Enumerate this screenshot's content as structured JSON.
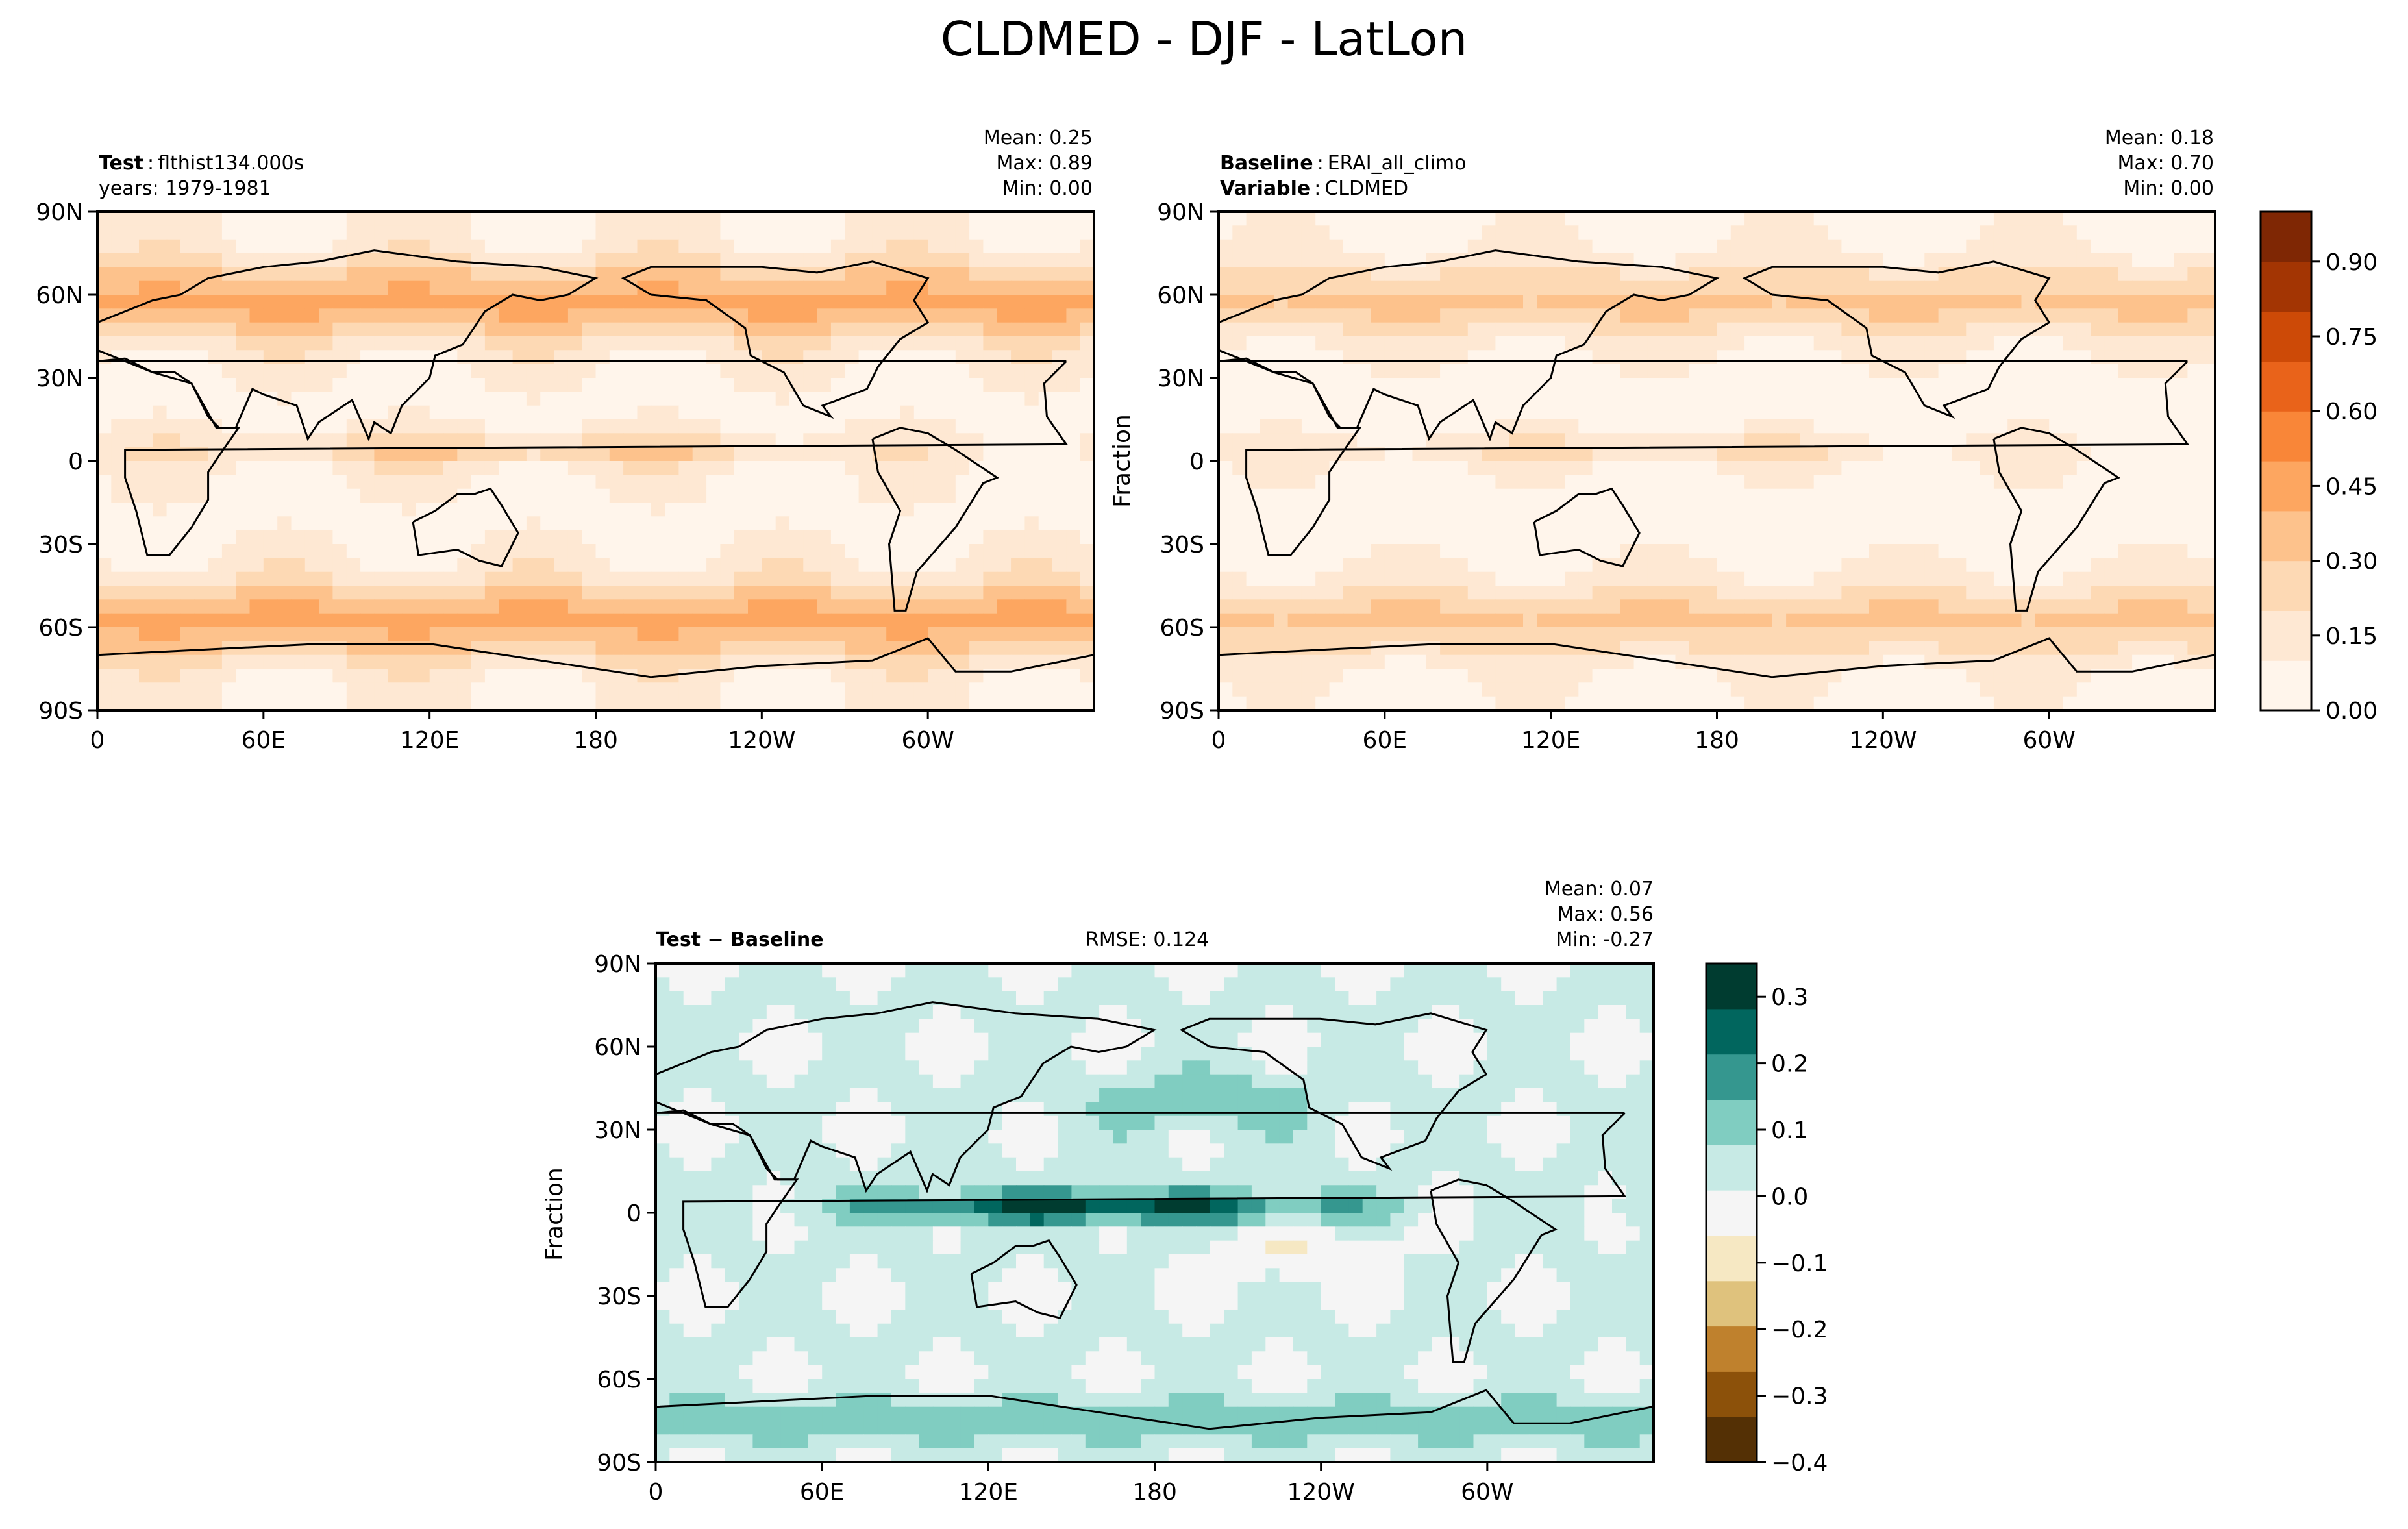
{
  "figure": {
    "title": "CLDMED - DJF - LatLon"
  },
  "colors": {
    "orange_scale": [
      "#fff5eb",
      "#fee8d3",
      "#fdd9b4",
      "#fdc28c",
      "#fda660",
      "#f98638",
      "#e9631a",
      "#cd4a07",
      "#a33503",
      "#7f2704"
    ],
    "diff_scale": [
      "#543005",
      "#8c510a",
      "#bf812d",
      "#dfc27d",
      "#f6e8c3",
      "#f5f5f5",
      "#c7eae5",
      "#80cdc1",
      "#35978f",
      "#01665e",
      "#003c30"
    ],
    "coast": "#000000"
  },
  "panels": {
    "test": {
      "label_bold": "Test",
      "label_value": "flthist134.000s",
      "sub": "years: 1979-1981",
      "mean": "Mean:  0.25",
      "max": "Max:  0.89",
      "min": "Min:  0.00"
    },
    "baseline": {
      "label_bold": "Baseline",
      "label_value": "ERAI_all_climo",
      "var_bold": "Variable",
      "var_value": "CLDMED",
      "ylabel": "Fraction",
      "mean": "Mean:  0.18",
      "max": "Max:  0.70",
      "min": "Min:  0.00"
    },
    "diff": {
      "label_bold": "Test − Baseline",
      "rmse": "RMSE: 0.124",
      "ylabel": "Fraction",
      "mean": "Mean:  0.07",
      "max": "Max:  0.56",
      "min": "Min: -0.27"
    }
  },
  "chart_data": [
    {
      "type": "heatmap",
      "title": "Test",
      "x_ticks": [
        "0",
        "60E",
        "120E",
        "180",
        "120W",
        "60W"
      ],
      "y_ticks": [
        "90N",
        "60N",
        "30N",
        "0",
        "30S",
        "60S",
        "90S"
      ],
      "xlim": [
        0,
        360
      ],
      "ylim": [
        -90,
        90
      ],
      "stats": {
        "mean": 0.25,
        "max": 0.89,
        "min": 0.0
      }
    },
    {
      "type": "heatmap",
      "title": "Baseline",
      "ylabel": "Fraction",
      "x_ticks": [
        "0",
        "60E",
        "120E",
        "180",
        "120W",
        "60W"
      ],
      "y_ticks": [
        "90N",
        "60N",
        "30N",
        "0",
        "30S",
        "60S",
        "90S"
      ],
      "xlim": [
        0,
        360
      ],
      "ylim": [
        -90,
        90
      ],
      "stats": {
        "mean": 0.18,
        "max": 0.7,
        "min": 0.0
      },
      "colorbar": {
        "range": [
          0,
          1
        ],
        "ticks": [
          "0.00",
          "0.15",
          "0.30",
          "0.45",
          "0.60",
          "0.75",
          "0.90"
        ]
      }
    },
    {
      "type": "heatmap",
      "title": "Test − Baseline",
      "ylabel": "Fraction",
      "x_ticks": [
        "0",
        "60E",
        "120E",
        "180",
        "120W",
        "60W"
      ],
      "y_ticks": [
        "90N",
        "60N",
        "30N",
        "0",
        "30S",
        "60S",
        "90S"
      ],
      "xlim": [
        0,
        360
      ],
      "ylim": [
        -90,
        90
      ],
      "rmse": 0.124,
      "stats": {
        "mean": 0.07,
        "max": 0.56,
        "min": -0.27
      },
      "colorbar": {
        "range": [
          -0.4,
          0.35
        ],
        "ticks": [
          "0.3",
          "0.2",
          "0.1",
          "0.0",
          "−0.1",
          "−0.2",
          "−0.3",
          "−0.4"
        ]
      }
    }
  ]
}
